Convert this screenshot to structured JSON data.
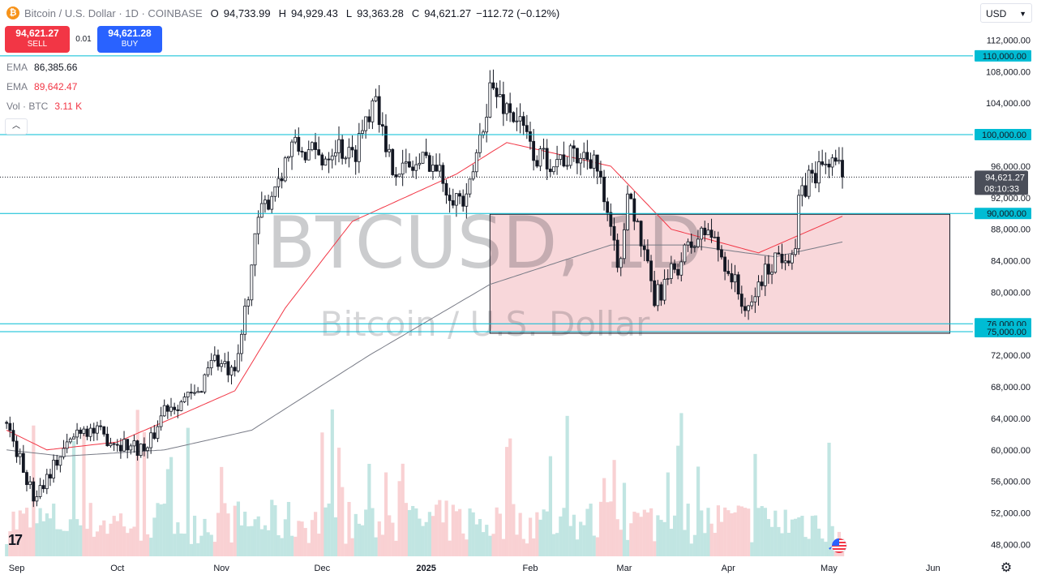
{
  "header": {
    "symbol_icon": "bitcoin-coin-icon",
    "title": "Bitcoin / U.S. Dollar · 1D · COINBASE",
    "open_label": "O",
    "open": "94,733.99",
    "high_label": "H",
    "high": "94,929.43",
    "low_label": "L",
    "low": "93,363.28",
    "close_label": "C",
    "close": "94,621.27",
    "change": "−112.72 (−0.12%)"
  },
  "trade": {
    "sell_price": "94,621.27",
    "sell_label": "SELL",
    "spread": "0.01",
    "buy_price": "94,621.28",
    "buy_label": "BUY"
  },
  "indicators": [
    {
      "name": "EMA",
      "value": "86,385.66",
      "color": "#787b86"
    },
    {
      "name": "EMA",
      "value": "89,642.47",
      "color": "#f23645"
    },
    {
      "name": "Vol · BTC",
      "value": "3.11 K",
      "color": "#f23645"
    }
  ],
  "currency_select": {
    "value": "USD",
    "icon": "chevron-down-icon"
  },
  "logo": "17",
  "settings_icon": "gear-icon",
  "chart_data": {
    "type": "candlestick",
    "watermark": {
      "symbol": "BTCUSD, 1D",
      "name": "Bitcoin / U.S. Dollar"
    },
    "ylim": [
      46500,
      114000
    ],
    "y_ticks": [
      48000,
      52000,
      56000,
      60000,
      64000,
      68000,
      72000,
      76000,
      80000,
      84000,
      88000,
      92000,
      96000,
      100000,
      104000,
      108000,
      112000
    ],
    "y_tick_labels": [
      "48,000.00",
      "52,000.00",
      "56,000.00",
      "60,000.00",
      "64,000.00",
      "68,000.00",
      "72,000.00",
      "76,000.00",
      "80,000.00",
      "84,000.00",
      "88,000.00",
      "92,000.00",
      "96,000.00",
      "100,000.00",
      "104,000.00",
      "108,000.00",
      "112,000.00"
    ],
    "x_labels": [
      "Sep",
      "Oct",
      "Nov",
      "Dec",
      "2025",
      "Feb",
      "Mar",
      "Apr",
      "May",
      "Jun"
    ],
    "x_label_dates": [
      "2024-09-01",
      "2024-10-01",
      "2024-11-01",
      "2024-12-01",
      "2025-01-01",
      "2025-02-01",
      "2025-03-01",
      "2025-04-01",
      "2025-05-01",
      "2025-06-01"
    ],
    "horizontal_lines": [
      {
        "value": 110000,
        "label": "110,000.00",
        "color": "#00bcd4"
      },
      {
        "value": 100000,
        "label": "100,000.00",
        "color": "#00bcd4"
      },
      {
        "value": 90000,
        "label": "90,000.00",
        "color": "#00bcd4"
      },
      {
        "value": 76000,
        "label": "76,000.00",
        "color": "#00bcd4"
      },
      {
        "value": 75000,
        "label": "75,000.00",
        "color": "#00bcd4"
      }
    ],
    "current_price": {
      "value": 94621.27,
      "label": "94,621.27",
      "countdown": "08:10:33",
      "color": "#4a4e59"
    },
    "range_box": {
      "start": "2025-01-20",
      "end": "2025-06-06",
      "low": 74800,
      "high": 89900,
      "fill": "#f8d7da",
      "border": "#131722"
    },
    "colors": {
      "up": "#089981",
      "down": "#f23645",
      "candle_body": "#131722",
      "ema_short": "#f23645",
      "ema_long": "#787b86",
      "vol_up": "#b2dfdb",
      "vol_down": "#f7c5c8"
    },
    "ohlc_anchors": {
      "dates": [
        "2024-08-29",
        "2024-09-06",
        "2024-09-12",
        "2024-09-20",
        "2024-10-01",
        "2024-10-10",
        "2024-10-15",
        "2024-10-25",
        "2024-10-29",
        "2024-11-05",
        "2024-11-12",
        "2024-11-22",
        "2024-12-01",
        "2024-12-05",
        "2024-12-10",
        "2024-12-17",
        "2024-12-20",
        "2024-12-26",
        "2025-01-02",
        "2025-01-08",
        "2025-01-13",
        "2025-01-20",
        "2025-01-28",
        "2025-02-03",
        "2025-02-12",
        "2025-02-20",
        "2025-02-25",
        "2025-02-28",
        "2025-03-02",
        "2025-03-05",
        "2025-03-10",
        "2025-03-20",
        "2025-03-26",
        "2025-04-01",
        "2025-04-07",
        "2025-04-10",
        "2025-04-15",
        "2025-04-21",
        "2025-04-22",
        "2025-04-25",
        "2025-05-02",
        "2025-05-05"
      ],
      "closes": [
        63500,
        54000,
        58000,
        63000,
        61000,
        60000,
        65500,
        67000,
        72000,
        69000,
        89000,
        98500,
        97000,
        99000,
        97000,
        106000,
        97000,
        95500,
        97000,
        93000,
        91000,
        106000,
        102000,
        97000,
        97000,
        97500,
        87000,
        83000,
        94000,
        88000,
        79000,
        85500,
        88000,
        83000,
        77000,
        81000,
        84500,
        85500,
        91000,
        94500,
        97000,
        94621.27
      ]
    },
    "ema_short_anchors": {
      "dates": [
        "2024-08-29",
        "2024-09-10",
        "2024-10-01",
        "2024-10-20",
        "2024-11-05",
        "2024-11-20",
        "2024-12-10",
        "2025-01-10",
        "2025-01-25",
        "2025-02-25",
        "2025-03-15",
        "2025-04-10",
        "2025-05-05"
      ],
      "values": [
        62500,
        60000,
        61000,
        64500,
        67500,
        78000,
        89000,
        95000,
        99000,
        96000,
        88000,
        85000,
        89642.47
      ]
    },
    "ema_long_anchors": {
      "dates": [
        "2024-08-29",
        "2024-09-15",
        "2024-10-15",
        "2024-11-10",
        "2024-12-15",
        "2025-01-20",
        "2025-02-25",
        "2025-03-20",
        "2025-04-15",
        "2025-05-05"
      ],
      "values": [
        60000,
        59200,
        60000,
        62500,
        72000,
        81000,
        86000,
        86000,
        84500,
        86385.66
      ]
    }
  }
}
